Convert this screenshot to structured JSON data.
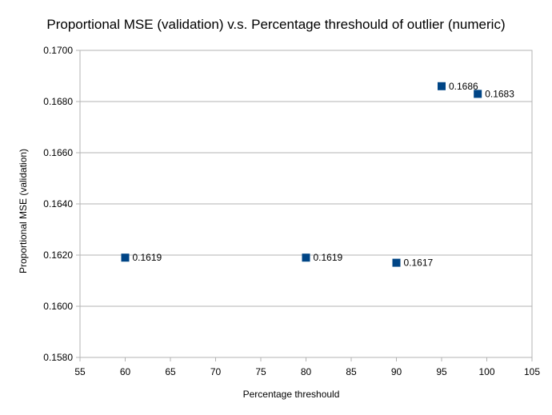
{
  "chart_data": {
    "type": "scatter",
    "title": "Proportional MSE (validation) v.s. Percentage threshould of outlier (numeric)",
    "xlabel": "Percentage threshould",
    "ylabel": "Proportional MSE (validation)",
    "xlim": [
      55,
      105
    ],
    "ylim": [
      0.158,
      0.17
    ],
    "x_ticks": [
      "55",
      "60",
      "65",
      "70",
      "75",
      "80",
      "85",
      "90",
      "95",
      "100",
      "105"
    ],
    "y_ticks": [
      "0.1580",
      "0.1600",
      "0.1620",
      "0.1640",
      "0.1660",
      "0.1680",
      "0.1700"
    ],
    "grid": "horizontal",
    "legend": "none",
    "marker_color": "#004586",
    "series": [
      {
        "points": [
          {
            "x": 60,
            "y": 0.1619,
            "label": "0.1619"
          },
          {
            "x": 80,
            "y": 0.1619,
            "label": "0.1619"
          },
          {
            "x": 90,
            "y": 0.1617,
            "label": "0.1617"
          },
          {
            "x": 95,
            "y": 0.1686,
            "label": "0.1686"
          },
          {
            "x": 99,
            "y": 0.1683,
            "label": "0.1683"
          }
        ]
      }
    ]
  }
}
